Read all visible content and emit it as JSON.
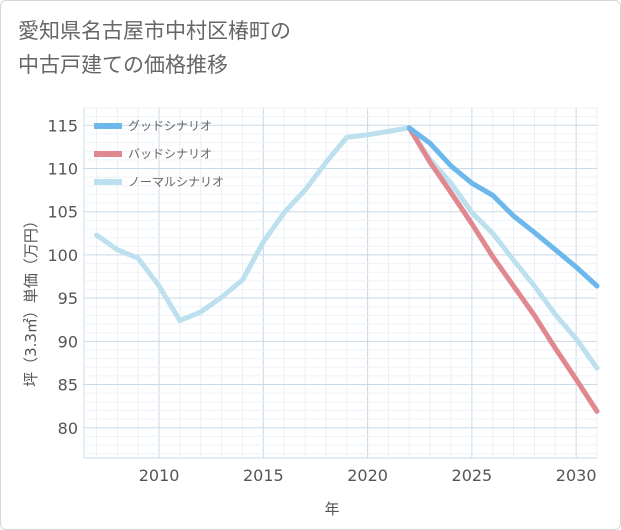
{
  "title": {
    "line1": "愛知県名古屋市中村区椿町の",
    "line2": "中古戸建ての価格推移"
  },
  "chart_data": {
    "type": "line",
    "xlabel": "年",
    "ylabel": "坪（3.3㎡）単価（万円）",
    "xlim": [
      2006.4,
      2031
    ],
    "ylim": [
      76.5,
      117
    ],
    "xticks": [
      2010,
      2015,
      2020,
      2025,
      2030
    ],
    "yticks": [
      80,
      85,
      90,
      95,
      100,
      105,
      110,
      115
    ],
    "grid": true,
    "legend_position": "top-left",
    "series": [
      {
        "name": "グッドシナリオ",
        "color": "#6cb8ec",
        "x": [
          2022,
          2023,
          2024,
          2025,
          2026,
          2027,
          2028,
          2029,
          2030,
          2031
        ],
        "y": [
          114.7,
          112.9,
          110.3,
          108.3,
          106.9,
          104.5,
          102.6,
          100.6,
          98.6,
          96.4
        ]
      },
      {
        "name": "バッドシナリオ",
        "color": "#e0878f",
        "x": [
          2022,
          2023,
          2024,
          2025,
          2026,
          2027,
          2028,
          2029,
          2030,
          2031
        ],
        "y": [
          114.7,
          110.7,
          107.2,
          103.6,
          99.8,
          96.4,
          93.0,
          89.2,
          85.6,
          81.9
        ]
      },
      {
        "name": "ノーマルシナリオ",
        "color": "#bde0ee",
        "x": [
          2007,
          2008,
          2009,
          2010,
          2011,
          2012,
          2013,
          2014,
          2015,
          2016,
          2017,
          2018,
          2019,
          2020,
          2021,
          2022,
          2023,
          2024,
          2025,
          2026,
          2027,
          2028,
          2029,
          2030,
          2031
        ],
        "y": [
          102.3,
          100.6,
          99.6,
          96.4,
          92.4,
          93.4,
          95.1,
          97.1,
          101.5,
          104.9,
          107.5,
          110.7,
          113.6,
          113.9,
          114.3,
          114.7,
          111.0,
          108.3,
          104.9,
          102.5,
          99.4,
          96.4,
          93.1,
          90.3,
          86.9
        ]
      }
    ]
  }
}
